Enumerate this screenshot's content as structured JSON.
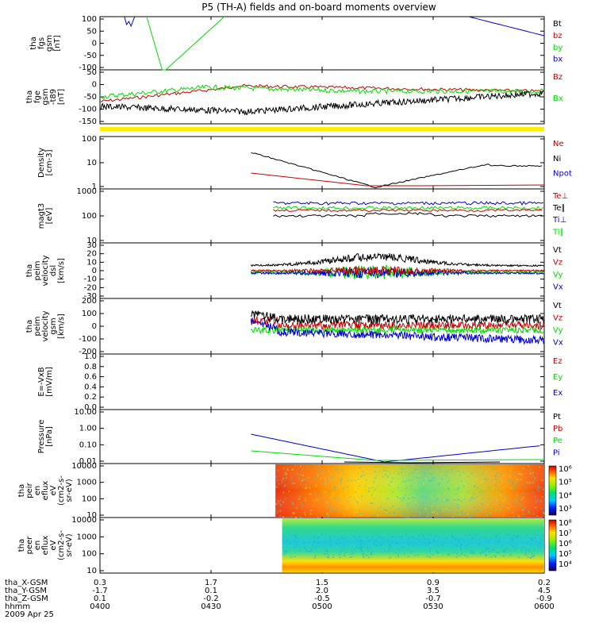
{
  "title": "P5 (TH-A) fields and on-board moments overview",
  "date_label": "2009 Apr 25",
  "colors": {
    "black": "#000000",
    "red": "#c80000",
    "green": "#00dc00",
    "blue": "#0000d2",
    "yellow": "#ffee00"
  },
  "time_axis": {
    "rows": [
      "tha_X-GSM",
      "tha_Y-GSM",
      "tha_Z-GSM",
      "hhmm"
    ],
    "ticks": [
      {
        "values": [
          "0.3",
          "-1.7",
          "0.1",
          "0400"
        ]
      },
      {
        "values": [
          "1.7",
          "0.1",
          "-0.2",
          "0430"
        ]
      },
      {
        "values": [
          "1.5",
          "2.0",
          "-0.5",
          "0500"
        ]
      },
      {
        "values": [
          "0.9",
          "3.5",
          "-0.7",
          "0530"
        ]
      },
      {
        "values": [
          "0.2",
          "4.5",
          "-0.9",
          "0600"
        ]
      }
    ]
  },
  "chart_data": [
    {
      "id": "fgs",
      "type": "line",
      "ylabel": [
        "tha",
        "fgs",
        "gsm",
        "[nT]"
      ],
      "y_ticks": [
        "100",
        "50",
        "0",
        "-50",
        "-100"
      ],
      "ylim": [
        -100,
        110
      ],
      "series": [
        {
          "name": "Bt",
          "color": "black"
        },
        {
          "name": "bz",
          "color": "red"
        },
        {
          "name": "by",
          "color": "green"
        },
        {
          "name": "bx",
          "color": "blue"
        }
      ]
    },
    {
      "id": "fge",
      "type": "line",
      "ylabel": [
        "tha",
        "fge",
        "gsm",
        "-t89",
        "[nT]"
      ],
      "y_ticks": [
        "50",
        "0",
        "-50",
        "-100",
        "-150"
      ],
      "ylim": [
        -175,
        70
      ],
      "series": [
        {
          "name": "Bz",
          "color": "red"
        },
        {
          "name": "Bx",
          "color": "green"
        }
      ]
    },
    {
      "id": "density",
      "type": "line",
      "log": true,
      "ylabel": [
        "Density",
        "[cm-3]"
      ],
      "y_ticks": [
        "100",
        "10",
        "1"
      ],
      "series": [
        {
          "name": "Ne",
          "color": "red"
        },
        {
          "name": "Ni",
          "color": "black"
        },
        {
          "name": "Npot",
          "color": "blue"
        }
      ]
    },
    {
      "id": "temp",
      "type": "line",
      "log": true,
      "ylabel": [
        "magt3",
        "[eV]"
      ],
      "y_ticks": [
        "1000",
        "100",
        "10"
      ],
      "series": [
        {
          "name": "Te⊥",
          "color": "red"
        },
        {
          "name": "Te∥",
          "color": "black"
        },
        {
          "name": "Ti⊥",
          "color": "blue"
        },
        {
          "name": "Ti∥",
          "color": "green"
        }
      ]
    },
    {
      "id": "velocity_dsl",
      "type": "line",
      "ylabel": [
        "tha",
        "peim",
        "velocity",
        "dsl",
        "[km/s]"
      ],
      "y_ticks": [
        "30",
        "20",
        "10",
        "0",
        "-10",
        "-20",
        "-30"
      ],
      "ylim": [
        -30,
        30
      ],
      "series": [
        {
          "name": "Vt",
          "color": "black"
        },
        {
          "name": "Vz",
          "color": "red"
        },
        {
          "name": "Vy",
          "color": "green"
        },
        {
          "name": "Vx",
          "color": "blue"
        }
      ]
    },
    {
      "id": "velocity_gsm",
      "type": "line",
      "ylabel": [
        "tha",
        "peim",
        "velocity",
        "gsm",
        "[km/s]"
      ],
      "y_ticks": [
        "200",
        "100",
        "0",
        "-100",
        "-200"
      ],
      "ylim": [
        -200,
        200
      ],
      "series": [
        {
          "name": "Vt",
          "color": "black"
        },
        {
          "name": "Vz",
          "color": "red"
        },
        {
          "name": "Vy",
          "color": "green"
        },
        {
          "name": "Vx",
          "color": "blue"
        }
      ]
    },
    {
      "id": "efield",
      "type": "line",
      "ylabel": [
        "E=-VxB",
        "[mV/m]"
      ],
      "y_ticks": [
        "1.0",
        "0.8",
        "0.6",
        "0.4",
        "0.2",
        "0.0"
      ],
      "ylim": [
        0,
        1
      ],
      "series": [
        {
          "name": "Ez",
          "color": "red"
        },
        {
          "name": "Ey",
          "color": "green"
        },
        {
          "name": "Ex",
          "color": "blue"
        }
      ]
    },
    {
      "id": "pressure",
      "type": "line",
      "log": true,
      "ylabel": [
        "Pressure",
        "[nPa]"
      ],
      "y_ticks": [
        "10.00",
        "1.00",
        "0.10",
        "0.01"
      ],
      "series": [
        {
          "name": "Pt",
          "color": "black"
        },
        {
          "name": "Pb",
          "color": "red"
        },
        {
          "name": "Pe",
          "color": "green"
        },
        {
          "name": "Pi",
          "color": "blue"
        }
      ]
    },
    {
      "id": "ion_eflux",
      "type": "heatmap",
      "ylabel": [
        "tha",
        "peir",
        "en",
        "eflux",
        "eV",
        "(cm2-s-",
        "sr-eV)"
      ],
      "y_ticks": [
        "10000",
        "1000",
        "100",
        "10"
      ],
      "colorbar_ticks": [
        "10⁶",
        "10⁵",
        "10⁴",
        "10³"
      ]
    },
    {
      "id": "electron_eflux",
      "type": "heatmap",
      "ylabel": [
        "tha",
        "peer",
        "en",
        "eflux",
        "eV",
        "(cm2-s-",
        "sr-eV)"
      ],
      "y_ticks": [
        "10000",
        "1000",
        "100",
        "10"
      ],
      "colorbar_ticks": [
        "10⁸",
        "10⁷",
        "10⁶",
        "10⁵",
        "10⁴"
      ]
    }
  ]
}
